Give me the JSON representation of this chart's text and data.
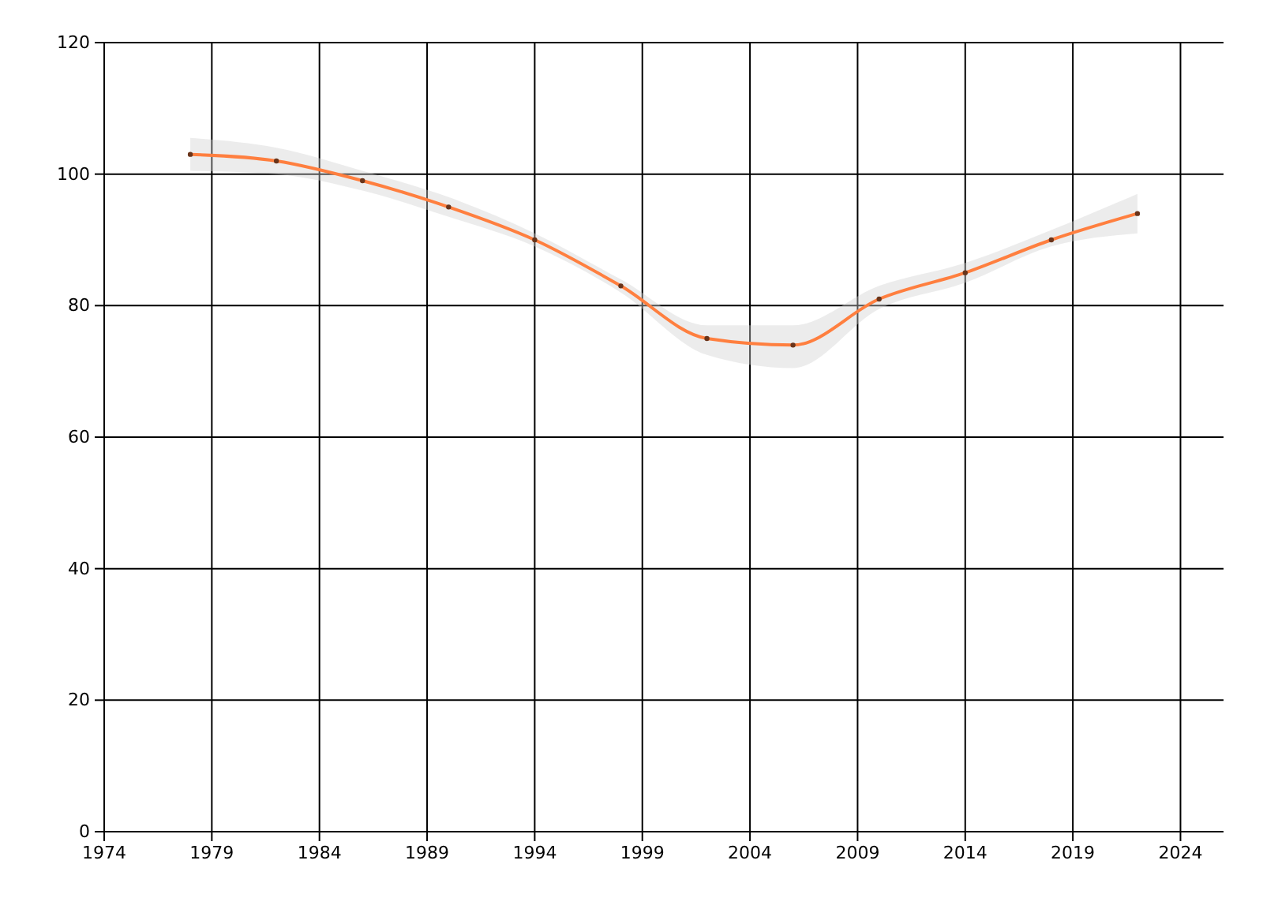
{
  "chart_data": {
    "type": "line",
    "x": [
      1978,
      1982,
      1986,
      1990,
      1994,
      1998,
      2002,
      2006,
      2010,
      2014,
      2018,
      2022
    ],
    "series": [
      {
        "color": "#ff7f3f",
        "values": [
          103,
          102,
          99,
          95,
          90,
          83,
          75,
          74,
          81,
          85,
          90,
          94
        ],
        "lower": [
          100.5,
          100,
          97.5,
          93.5,
          89,
          82,
          72.5,
          70.5,
          79.5,
          83.5,
          89,
          91
        ],
        "upper": [
          105.5,
          104,
          100.5,
          96.5,
          91,
          84,
          77,
          77,
          83,
          86.5,
          91.5,
          97
        ]
      }
    ],
    "xlim": [
      1974,
      2026
    ],
    "xticks": [
      1974,
      1979,
      1984,
      1989,
      1994,
      1999,
      2004,
      2009,
      2014,
      2019,
      2024
    ],
    "ylim": [
      0,
      120
    ],
    "yticks": [
      0,
      20,
      40,
      60,
      80,
      100,
      120
    ],
    "grid": true,
    "marker": "circle",
    "line_style": "solid"
  }
}
